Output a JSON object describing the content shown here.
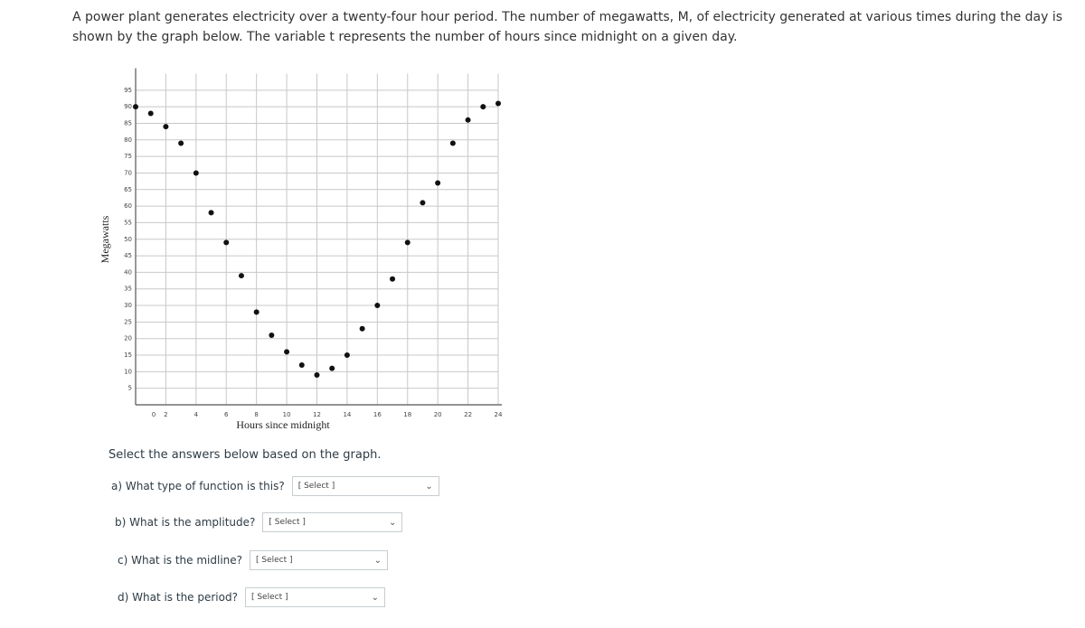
{
  "intro": "A power plant generates electricity over a twenty-four hour period. The number of megawatts, M, of electricity generated at various times during the day is shown by the graph below. The variable t represents the number of hours since midnight on a given day.",
  "chart_data": {
    "type": "scatter",
    "x_label": "Hours since midnight",
    "y_label": "Megawatts",
    "color": "#111111",
    "x": [
      0,
      1,
      2,
      3,
      4,
      5,
      6,
      7,
      8,
      9,
      10,
      11,
      12,
      13,
      14,
      15,
      16,
      17,
      18,
      19,
      20,
      21,
      22,
      23,
      24
    ],
    "values": [
      90,
      88,
      84,
      79,
      70,
      58,
      49,
      39,
      28,
      21,
      16,
      12,
      9,
      11,
      15,
      23,
      30,
      38,
      49,
      61,
      67,
      79,
      86,
      90,
      91
    ],
    "xlim": [
      0,
      24
    ],
    "ylim": [
      0,
      100
    ],
    "xticks": [
      0,
      2,
      4,
      6,
      8,
      10,
      12,
      14,
      16,
      18,
      20,
      22,
      24
    ],
    "yticks": [
      5,
      10,
      15,
      20,
      25,
      30,
      35,
      40,
      45,
      50,
      55,
      60,
      65,
      70,
      75,
      80,
      85,
      90,
      95
    ],
    "grid": true
  },
  "instructions": "Select the answers below based on the graph.",
  "questions": [
    {
      "label": "a) What type of function is this?",
      "select": "[ Select ]"
    },
    {
      "label": "b) What is the amplitude?",
      "select": "[ Select ]"
    },
    {
      "label": "c) What is the midline?",
      "select": "[ Select ]"
    },
    {
      "label": "d) What is the period?",
      "select": "[ Select ]"
    }
  ]
}
